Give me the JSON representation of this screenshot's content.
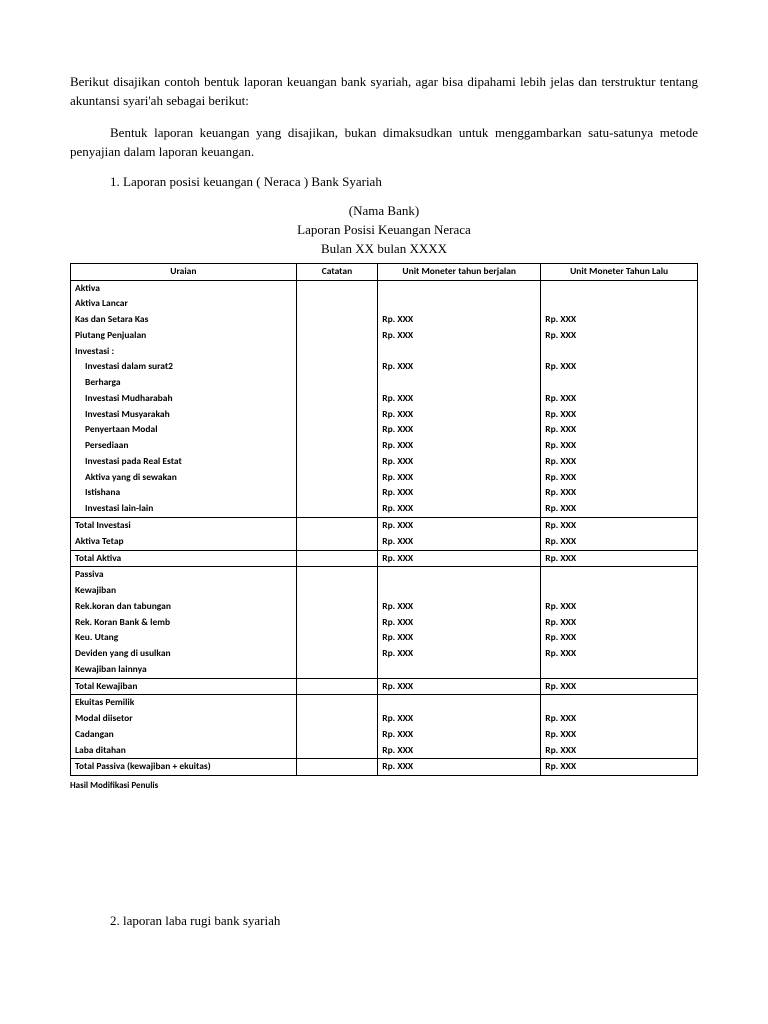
{
  "intro1": "Berikut disajikan contoh bentuk laporan keuangan bank syariah, agar bisa dipahami lebih jelas dan terstruktur tentang akuntansi syari'ah sebagai berikut:",
  "intro2": "Bentuk laporan keuangan yang disajikan, bukan dimaksudkan untuk menggambarkan satu-satunya metode penyajian dalam laporan keuangan.",
  "list1": "1. Laporan posisi keuangan ( Neraca ) Bank Syariah",
  "title_bank": "(Nama Bank)",
  "title_report": "Laporan Posisi Keuangan Neraca",
  "title_period": "Bulan XX bulan XXXX",
  "headers": {
    "uraian": "Uraian",
    "catatan": "Catatan",
    "current": "Unit Moneter tahun berjalan",
    "previous": "Unit Moneter Tahun Lalu"
  },
  "v": "Rp. XXX",
  "rows": {
    "aktiva": "Aktiva",
    "aktiva_lancar": "Aktiva Lancar",
    "kas": "Kas dan Setara Kas",
    "piutang": "Piutang Penjualan",
    "investasi": "Investasi :",
    "inv_surat1": "Investasi dalam surat2",
    "inv_surat2": "Berharga",
    "inv_mud": "Investasi Mudharabah",
    "inv_mus": "Investasi Musyarakah",
    "peny_modal": "Penyertaan Modal",
    "persediaan": "Persediaan",
    "inv_real": "Investasi pada Real Estat",
    "aktiva_sewa": "Aktiva yang di sewakan",
    "istishana": "Istishana",
    "inv_lain": "Investasi lain-lain",
    "total_inv": "Total Investasi",
    "aktiva_tetap": "Aktiva Tetap",
    "total_aktiva": "Total Aktiva",
    "passiva": "Passiva",
    "kewajiban": "Kewajiban",
    "rek_koran": "Rek.koran dan tabungan",
    "rek_bank": "Rek. Koran Bank & lemb",
    "keu_utang": "Keu. Utang",
    "deviden": "Deviden yang di usulkan",
    "kew_lain": "Kewajiban lainnya",
    "total_kew": "Total Kewajiban",
    "ekuitas": "Ekuitas Pemilik",
    "modal": "Modal diisetor",
    "cadangan": "Cadangan",
    "laba": "Laba ditahan",
    "total_passiva": "Total Passiva (kewajiban + ekuitas)"
  },
  "footnote": "Hasil Modifikasi Penulis",
  "list2": "2. laporan laba rugi bank syariah"
}
